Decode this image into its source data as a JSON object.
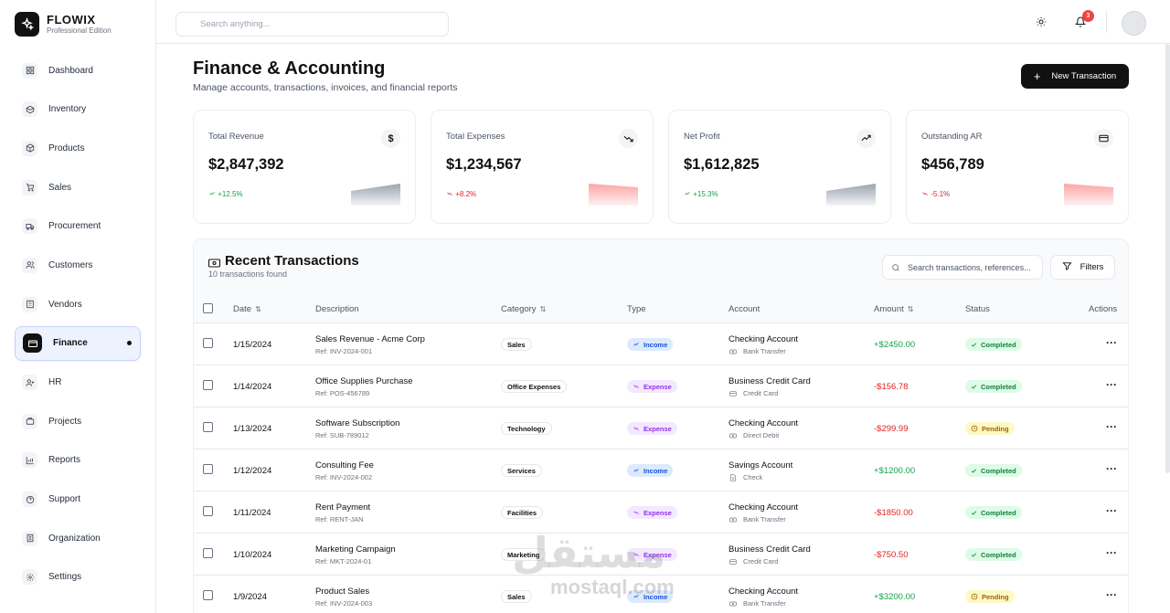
{
  "brand": {
    "name": "FLOWIX",
    "edition": "Professional Edition"
  },
  "sidebar": {
    "items": [
      {
        "label": "Dashboard",
        "icon": "dashboard-icon"
      },
      {
        "label": "Inventory",
        "icon": "box-icon"
      },
      {
        "label": "Products",
        "icon": "cube-icon"
      },
      {
        "label": "Sales",
        "icon": "cart-icon"
      },
      {
        "label": "Procurement",
        "icon": "truck-icon"
      },
      {
        "label": "Customers",
        "icon": "users-icon"
      },
      {
        "label": "Vendors",
        "icon": "building-icon"
      },
      {
        "label": "Finance",
        "icon": "wallet-icon",
        "active": true
      },
      {
        "label": "HR",
        "icon": "user-plus-icon"
      },
      {
        "label": "Projects",
        "icon": "briefcase-icon"
      },
      {
        "label": "Reports",
        "icon": "bar-chart-icon"
      },
      {
        "label": "Support",
        "icon": "help-circle-icon"
      },
      {
        "label": "Organization",
        "icon": "org-icon"
      },
      {
        "label": "Settings",
        "icon": "gear-icon"
      }
    ]
  },
  "header": {
    "search_placeholder": "Search anything...",
    "notifications_count": "3"
  },
  "page": {
    "title": "Finance & Accounting",
    "subtitle": "Manage accounts, transactions, invoices, and financial reports",
    "new_button": "New Transaction"
  },
  "stats": [
    {
      "label": "Total Revenue",
      "value": "$2,847,392",
      "change": "+12.5%",
      "trend": "up",
      "icon": "dollar-icon",
      "glyph": "$"
    },
    {
      "label": "Total Expenses",
      "value": "$1,234,567",
      "change": "+8.2%",
      "trend": "down",
      "icon": "trend-down-icon",
      "glyph": ""
    },
    {
      "label": "Net Profit",
      "value": "$1,612,825",
      "change": "+15.3%",
      "trend": "up",
      "icon": "trend-up-icon",
      "glyph": ""
    },
    {
      "label": "Outstanding AR",
      "value": "$456,789",
      "change": "-5.1%",
      "trend": "down",
      "icon": "card-icon",
      "glyph": ""
    }
  ],
  "transactions": {
    "title": "Recent Transactions",
    "count_text": "10 transactions found",
    "search_placeholder": "Search transactions, references...",
    "filters_label": "Filters",
    "columns": {
      "date": "Date",
      "description": "Description",
      "category": "Category",
      "type": "Type",
      "account": "Account",
      "amount": "Amount",
      "status": "Status",
      "actions": "Actions"
    },
    "rows": [
      {
        "date": "1/15/2024",
        "description": "Sales Revenue - Acme Corp",
        "ref": "Ref: INV-2024-001",
        "category": "Sales",
        "type": "Income",
        "account": "Checking Account",
        "method": "Bank Transfer",
        "amount": "+$2450.00",
        "status": "Completed"
      },
      {
        "date": "1/14/2024",
        "description": "Office Supplies Purchase",
        "ref": "Ref: POS-456789",
        "category": "Office Expenses",
        "type": "Expense",
        "account": "Business Credit Card",
        "method": "Credit Card",
        "amount": "-$156.78",
        "status": "Completed"
      },
      {
        "date": "1/13/2024",
        "description": "Software Subscription",
        "ref": "Ref: SUB-789012",
        "category": "Technology",
        "type": "Expense",
        "account": "Checking Account",
        "method": "Direct Debit",
        "amount": "-$299.99",
        "status": "Pending"
      },
      {
        "date": "1/12/2024",
        "description": "Consulting Fee",
        "ref": "Ref: INV-2024-002",
        "category": "Services",
        "type": "Income",
        "account": "Savings Account",
        "method": "Check",
        "amount": "+$1200.00",
        "status": "Completed"
      },
      {
        "date": "1/11/2024",
        "description": "Rent Payment",
        "ref": "Ref: RENT-JAN",
        "category": "Facilities",
        "type": "Expense",
        "account": "Checking Account",
        "method": "Bank Transfer",
        "amount": "-$1850.00",
        "status": "Completed"
      },
      {
        "date": "1/10/2024",
        "description": "Marketing Campaign",
        "ref": "Ref: MKT-2024-01",
        "category": "Marketing",
        "type": "Expense",
        "account": "Business Credit Card",
        "method": "Credit Card",
        "amount": "-$750.50",
        "status": "Completed"
      },
      {
        "date": "1/9/2024",
        "description": "Product Sales",
        "ref": "Ref: INV-2024-003",
        "category": "Sales",
        "type": "Income",
        "account": "Checking Account",
        "method": "Bank Transfer",
        "amount": "+$3200.00",
        "status": "Pending"
      }
    ]
  },
  "colors": {
    "accent": "#111111",
    "positive": "#16a34a",
    "negative": "#dc2626",
    "income_bg": "#dbeafe",
    "expense_bg": "#f3e8ff"
  },
  "watermark": {
    "text": "مستقل",
    "sub": "mostaql.com"
  }
}
